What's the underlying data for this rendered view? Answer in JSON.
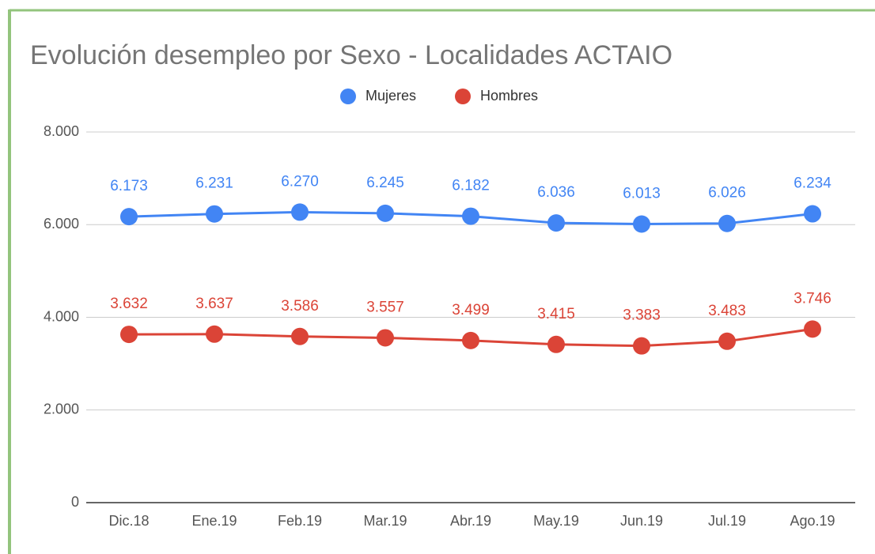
{
  "chart_data": {
    "type": "line",
    "title": "Evolución desempleo por Sexo - Localidades ACTAIO",
    "categories": [
      "Dic.18",
      "Ene.19",
      "Feb.19",
      "Mar.19",
      "Abr.19",
      "May.19",
      "Jun.19",
      "Jul.19",
      "Ago.19"
    ],
    "series": [
      {
        "name": "Mujeres",
        "color": "#4285f4",
        "values": [
          6173,
          6231,
          6270,
          6245,
          6182,
          6036,
          6013,
          6026,
          6234
        ],
        "value_labels": [
          "6.173",
          "6.231",
          "6.270",
          "6.245",
          "6.182",
          "6.036",
          "6.013",
          "6.026",
          "6.234"
        ]
      },
      {
        "name": "Hombres",
        "color": "#db4437",
        "values": [
          3632,
          3637,
          3586,
          3557,
          3499,
          3415,
          3383,
          3483,
          3746
        ],
        "value_labels": [
          "3.632",
          "3.637",
          "3.586",
          "3.557",
          "3.499",
          "3.415",
          "3.383",
          "3.483",
          "3.746"
        ]
      }
    ],
    "ylim": [
      0,
      8000
    ],
    "yticks": [
      0,
      {
        "value": 2000,
        "label": "2.000"
      },
      {
        "value": 4000,
        "label": "4.000"
      },
      {
        "value": 6000,
        "label": "6.000"
      },
      {
        "value": 8000,
        "label": "8.000"
      }
    ],
    "grid": true,
    "legend": "top"
  }
}
